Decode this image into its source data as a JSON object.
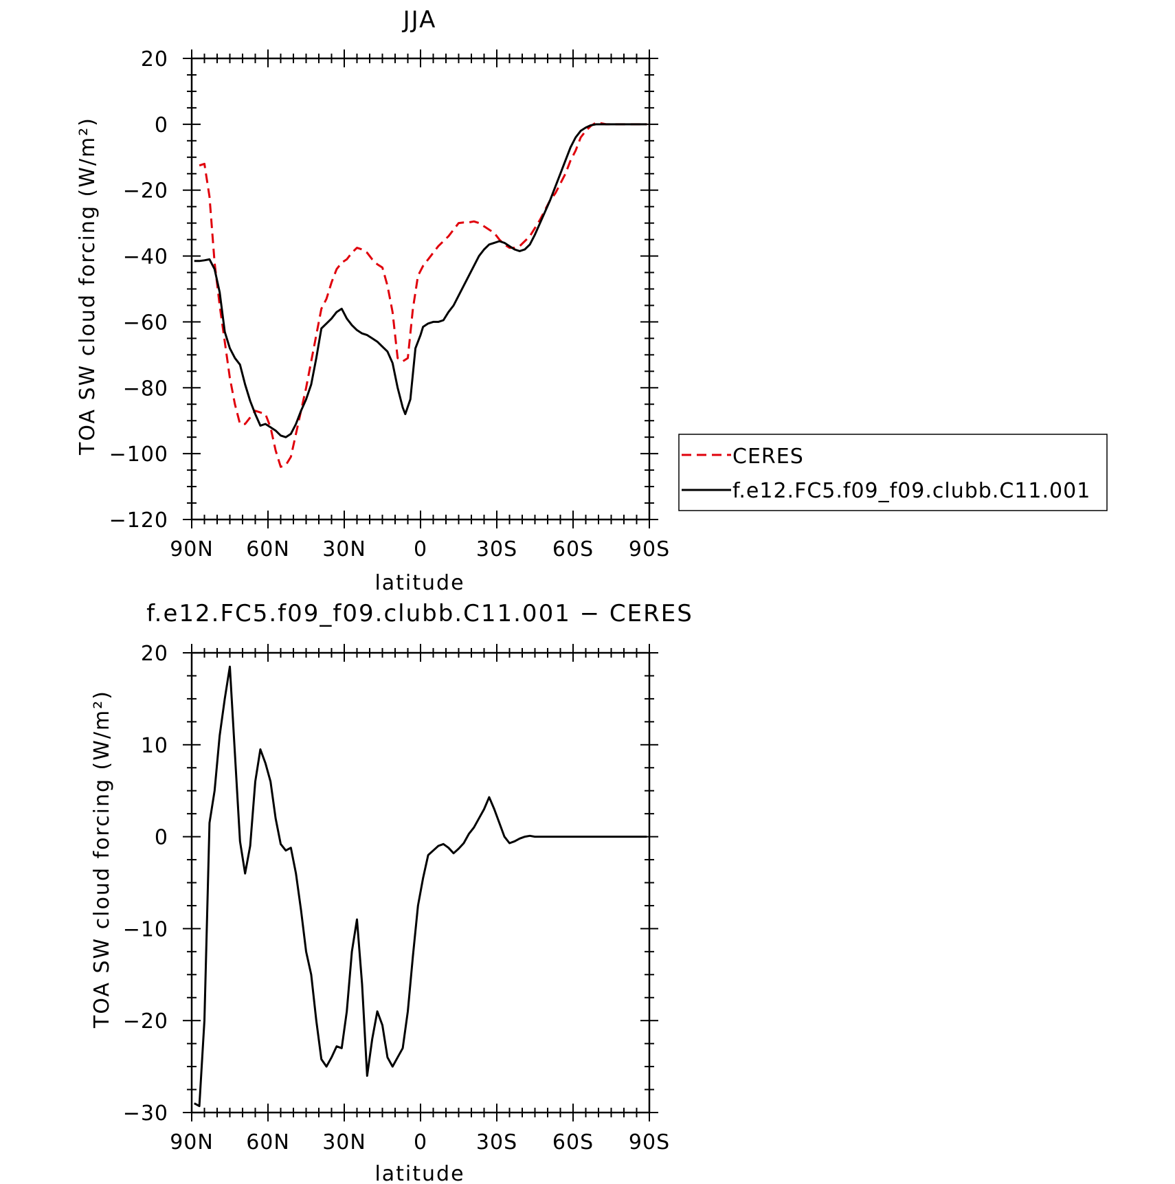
{
  "chart_data": [
    {
      "type": "line",
      "title": "JJA",
      "xlabel": "latitude",
      "ylabel": "TOA SW cloud forcing (W/m²)",
      "xlim": [
        -90,
        90
      ],
      "ylim": [
        -120,
        20
      ],
      "x_ticks": [
        -90,
        -60,
        -30,
        0,
        30,
        60,
        90
      ],
      "x_tick_labels": [
        "90N",
        "60N",
        "30N",
        "0",
        "30S",
        "60S",
        "90S"
      ],
      "y_ticks": [
        20,
        0,
        -20,
        -40,
        -60,
        -80,
        -100,
        -120
      ],
      "y_tick_labels": [
        "20",
        "0",
        "−20",
        "−40",
        "−60",
        "−80",
        "−100",
        "−120"
      ],
      "legend_position": "right",
      "series": [
        {
          "name": "CERES",
          "color": "#e0000b",
          "dash": true,
          "points": [
            [
              -87,
              -12.5
            ],
            [
              -85,
              -12
            ],
            [
              -83,
              -22
            ],
            [
              -81,
              -42
            ],
            [
              -79,
              -55
            ],
            [
              -77,
              -66
            ],
            [
              -75,
              -77
            ],
            [
              -73,
              -85
            ],
            [
              -71,
              -91
            ],
            [
              -69,
              -91
            ],
            [
              -67,
              -89
            ],
            [
              -65,
              -87
            ],
            [
              -63,
              -87.5
            ],
            [
              -61,
              -88
            ],
            [
              -59,
              -92
            ],
            [
              -57,
              -99
            ],
            [
              -55,
              -104
            ],
            [
              -53,
              -103.5
            ],
            [
              -51,
              -101
            ],
            [
              -49,
              -94
            ],
            [
              -47,
              -87
            ],
            [
              -45,
              -80
            ],
            [
              -43,
              -72
            ],
            [
              -41,
              -64
            ],
            [
              -39,
              -56
            ],
            [
              -37,
              -53
            ],
            [
              -35,
              -48
            ],
            [
              -33,
              -44
            ],
            [
              -31,
              -42
            ],
            [
              -29,
              -41
            ],
            [
              -27,
              -39
            ],
            [
              -25,
              -37.5
            ],
            [
              -23,
              -38
            ],
            [
              -21,
              -39
            ],
            [
              -19,
              -41
            ],
            [
              -17,
              -42.5
            ],
            [
              -15,
              -43.5
            ],
            [
              -13,
              -49
            ],
            [
              -11,
              -57
            ],
            [
              -9,
              -71
            ],
            [
              -7,
              -72
            ],
            [
              -5,
              -71
            ],
            [
              -3,
              -56
            ],
            [
              -1,
              -46
            ],
            [
              1,
              -43
            ],
            [
              3,
              -41
            ],
            [
              5,
              -39
            ],
            [
              7,
              -37
            ],
            [
              9,
              -35.5
            ],
            [
              11,
              -34
            ],
            [
              13,
              -32
            ],
            [
              15,
              -30
            ],
            [
              17,
              -29.8
            ],
            [
              19,
              -29.8
            ],
            [
              21,
              -29.5
            ],
            [
              23,
              -30
            ],
            [
              25,
              -31
            ],
            [
              27,
              -32
            ],
            [
              29,
              -33
            ],
            [
              31,
              -35
            ],
            [
              33,
              -36.5
            ],
            [
              35,
              -37.5
            ],
            [
              37,
              -37.5
            ],
            [
              39,
              -37
            ],
            [
              41,
              -35.5
            ],
            [
              43,
              -34
            ],
            [
              45,
              -31.5
            ],
            [
              47,
              -29
            ],
            [
              49,
              -26
            ],
            [
              51,
              -23
            ],
            [
              53,
              -21
            ],
            [
              55,
              -18
            ],
            [
              57,
              -15
            ],
            [
              59,
              -11
            ],
            [
              61,
              -8
            ],
            [
              63,
              -4
            ],
            [
              65,
              -2
            ],
            [
              67,
              -0.5
            ],
            [
              69,
              0.5
            ],
            [
              71,
              0.3
            ],
            [
              73,
              0
            ],
            [
              75,
              0
            ],
            [
              80,
              0
            ],
            [
              85,
              0
            ],
            [
              89,
              0
            ]
          ]
        },
        {
          "name": "f.e12.FC5.f09_f09.clubb.C11.001",
          "color": "#000000",
          "dash": false,
          "points": [
            [
              -89,
              -41.5
            ],
            [
              -87,
              -41.5
            ],
            [
              -85,
              -41.3
            ],
            [
              -83,
              -41
            ],
            [
              -81,
              -44
            ],
            [
              -79,
              -51
            ],
            [
              -77,
              -63
            ],
            [
              -75,
              -68
            ],
            [
              -73,
              -71
            ],
            [
              -71,
              -73
            ],
            [
              -69,
              -79
            ],
            [
              -67,
              -84
            ],
            [
              -65,
              -88
            ],
            [
              -63,
              -91.5
            ],
            [
              -61,
              -91
            ],
            [
              -59,
              -92
            ],
            [
              -57,
              -93
            ],
            [
              -55,
              -94.5
            ],
            [
              -53,
              -95
            ],
            [
              -51,
              -94
            ],
            [
              -49,
              -91
            ],
            [
              -47,
              -87
            ],
            [
              -45,
              -83.5
            ],
            [
              -43,
              -79
            ],
            [
              -41,
              -71
            ],
            [
              -39,
              -62
            ],
            [
              -37,
              -60.5
            ],
            [
              -35,
              -59
            ],
            [
              -33,
              -57
            ],
            [
              -31,
              -56
            ],
            [
              -29,
              -59
            ],
            [
              -27,
              -61
            ],
            [
              -25,
              -62.5
            ],
            [
              -23,
              -63.5
            ],
            [
              -21,
              -64
            ],
            [
              -19,
              -65
            ],
            [
              -17,
              -66
            ],
            [
              -15,
              -67.5
            ],
            [
              -13,
              -69
            ],
            [
              -11,
              -72.5
            ],
            [
              -9,
              -80
            ],
            [
              -7,
              -86
            ],
            [
              -6,
              -88
            ],
            [
              -4,
              -83.5
            ],
            [
              -2,
              -68
            ],
            [
              0,
              -64
            ],
            [
              1,
              -61.5
            ],
            [
              3,
              -60.5
            ],
            [
              5,
              -60
            ],
            [
              7,
              -60
            ],
            [
              9,
              -59.5
            ],
            [
              11,
              -57
            ],
            [
              13,
              -55
            ],
            [
              15,
              -52
            ],
            [
              17,
              -49
            ],
            [
              19,
              -46
            ],
            [
              21,
              -43
            ],
            [
              23,
              -40
            ],
            [
              25,
              -38
            ],
            [
              27,
              -36.5
            ],
            [
              29,
              -36
            ],
            [
              31,
              -35.5
            ],
            [
              33,
              -36
            ],
            [
              35,
              -37
            ],
            [
              37,
              -38
            ],
            [
              39,
              -38.5
            ],
            [
              41,
              -38
            ],
            [
              43,
              -36.5
            ],
            [
              45,
              -33.5
            ],
            [
              47,
              -30
            ],
            [
              49,
              -26.5
            ],
            [
              51,
              -23
            ],
            [
              53,
              -19
            ],
            [
              55,
              -15
            ],
            [
              57,
              -11
            ],
            [
              59,
              -7
            ],
            [
              61,
              -4
            ],
            [
              63,
              -2
            ],
            [
              65,
              -1
            ],
            [
              67,
              -0.3
            ],
            [
              69,
              0
            ],
            [
              75,
              0
            ],
            [
              80,
              0
            ],
            [
              85,
              0
            ],
            [
              89,
              0
            ]
          ]
        }
      ]
    },
    {
      "type": "line",
      "title": "f.e12.FC5.f09_f09.clubb.C11.001 − CERES",
      "xlabel": "latitude",
      "ylabel": "TOA SW cloud forcing (W/m²)",
      "xlim": [
        -90,
        90
      ],
      "ylim": [
        -30,
        20
      ],
      "x_ticks": [
        -90,
        -60,
        -30,
        0,
        30,
        60,
        90
      ],
      "x_tick_labels": [
        "90N",
        "60N",
        "30N",
        "0",
        "30S",
        "60S",
        "90S"
      ],
      "y_ticks": [
        20,
        10,
        0,
        -10,
        -20,
        -30
      ],
      "y_tick_labels": [
        "20",
        "10",
        "0",
        "−10",
        "−20",
        "−30"
      ],
      "series": [
        {
          "color": "#000000",
          "dash": false,
          "points": [
            [
              -89,
              -29
            ],
            [
              -87,
              -29.3
            ],
            [
              -85,
              -20
            ],
            [
              -83,
              1.5
            ],
            [
              -81,
              5
            ],
            [
              -79,
              11
            ],
            [
              -77,
              15
            ],
            [
              -75,
              18.5
            ],
            [
              -73,
              9
            ],
            [
              -71,
              -0.5
            ],
            [
              -69,
              -4
            ],
            [
              -67,
              -1
            ],
            [
              -65,
              6
            ],
            [
              -63,
              9.5
            ],
            [
              -61,
              8
            ],
            [
              -59,
              6
            ],
            [
              -57,
              2
            ],
            [
              -55,
              -0.8
            ],
            [
              -53,
              -1.5
            ],
            [
              -51,
              -1.2
            ],
            [
              -49,
              -4
            ],
            [
              -47,
              -8
            ],
            [
              -45,
              -12.5
            ],
            [
              -43,
              -15
            ],
            [
              -41,
              -20
            ],
            [
              -39,
              -24.2
            ],
            [
              -37,
              -25
            ],
            [
              -35,
              -24
            ],
            [
              -33,
              -22.8
            ],
            [
              -31,
              -23
            ],
            [
              -29,
              -19
            ],
            [
              -27,
              -12.5
            ],
            [
              -25,
              -9
            ],
            [
              -23,
              -16
            ],
            [
              -21,
              -26
            ],
            [
              -19,
              -22
            ],
            [
              -17,
              -19
            ],
            [
              -15,
              -20.5
            ],
            [
              -13,
              -24
            ],
            [
              -11,
              -25
            ],
            [
              -9,
              -24
            ],
            [
              -7,
              -23
            ],
            [
              -5,
              -19
            ],
            [
              -3,
              -13
            ],
            [
              -1,
              -7.5
            ],
            [
              1,
              -4.5
            ],
            [
              3,
              -2
            ],
            [
              5,
              -1.5
            ],
            [
              7,
              -1
            ],
            [
              9,
              -0.8
            ],
            [
              11,
              -1.2
            ],
            [
              13,
              -1.8
            ],
            [
              15,
              -1.3
            ],
            [
              17,
              -0.7
            ],
            [
              19,
              0.3
            ],
            [
              21,
              1
            ],
            [
              23,
              2
            ],
            [
              25,
              3
            ],
            [
              27,
              4.3
            ],
            [
              29,
              3
            ],
            [
              31,
              1.5
            ],
            [
              33,
              0
            ],
            [
              35,
              -0.7
            ],
            [
              37,
              -0.5
            ],
            [
              39,
              -0.2
            ],
            [
              41,
              0
            ],
            [
              43,
              0.1
            ],
            [
              45,
              0
            ],
            [
              50,
              0
            ],
            [
              55,
              0
            ],
            [
              60,
              0
            ],
            [
              70,
              0
            ],
            [
              80,
              0
            ],
            [
              89,
              0
            ]
          ]
        }
      ]
    }
  ]
}
